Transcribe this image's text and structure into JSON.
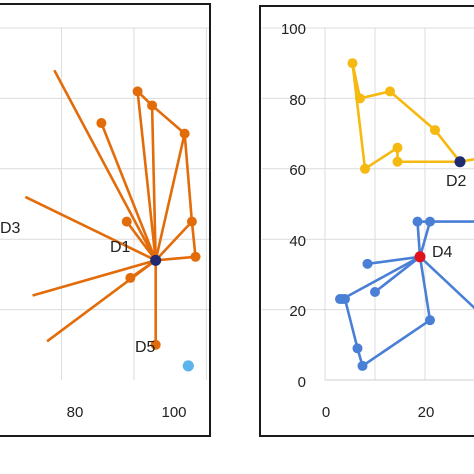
{
  "chart_data": [
    {
      "type": "scatter",
      "title": "",
      "xlabel": "",
      "ylabel": "",
      "xlim": [
        40,
        100
      ],
      "ylim": [
        0,
        100
      ],
      "x_ticks": [
        80,
        100
      ],
      "grid": true,
      "legend": "none",
      "series": [
        {
          "color": "#e36c0a",
          "style": "spokes-to-center",
          "center": {
            "x": 86,
            "y": 34
          },
          "points": [
            {
              "x": 71,
              "y": 73
            },
            {
              "x": 81,
              "y": 82
            },
            {
              "x": 85,
              "y": 78
            },
            {
              "x": 94,
              "y": 70
            },
            {
              "x": 96,
              "y": 45
            },
            {
              "x": 97,
              "y": 35
            },
            {
              "x": 78,
              "y": 45
            },
            {
              "x": 79,
              "y": 29
            },
            {
              "x": 86,
              "y": 10
            }
          ],
          "edges": [
            [
              1,
              2
            ],
            [
              2,
              3
            ],
            [
              3,
              4
            ],
            [
              4,
              5
            ]
          ]
        },
        {
          "color": "#e36c0a",
          "style": "offscreen-spokes",
          "points": [
            {
              "x": 58,
              "y": 88
            },
            {
              "x": 50,
              "y": 52
            },
            {
              "x": 52,
              "y": 24
            },
            {
              "x": 56,
              "y": 11
            }
          ]
        },
        {
          "color": "#5bb5ea",
          "style": "point",
          "points": [
            {
              "x": 95,
              "y": 4
            }
          ]
        }
      ],
      "annotations": [
        {
          "text": "D1",
          "x": 86,
          "y": 34
        },
        {
          "text": "D3",
          "x": 41,
          "y": 43
        },
        {
          "text": "D5",
          "x": 95,
          "y": 4
        }
      ],
      "markers": [
        {
          "x": 86,
          "y": 34,
          "color": "#1f2a70"
        },
        {
          "x": 95,
          "y": 4,
          "color": "#5bb5ea"
        }
      ]
    },
    {
      "type": "scatter",
      "title": "",
      "xlabel": "",
      "ylabel": "",
      "xlim": [
        0,
        30
      ],
      "ylim": [
        0,
        100
      ],
      "x_ticks": [
        0,
        20
      ],
      "y_ticks": [
        0,
        20,
        40,
        60,
        80,
        100
      ],
      "grid": true,
      "legend": "none",
      "series": [
        {
          "color": "#f5b90f",
          "style": "polygon",
          "points": [
            {
              "x": 5.5,
              "y": 90
            },
            {
              "x": 7,
              "y": 80
            },
            {
              "x": 13,
              "y": 82
            },
            {
              "x": 22,
              "y": 71
            },
            {
              "x": 27,
              "y": 62
            },
            {
              "x": 14.5,
              "y": 62
            },
            {
              "x": 14.5,
              "y": 66
            },
            {
              "x": 8,
              "y": 60
            }
          ],
          "closed": true
        },
        {
          "color": "#f5b90f",
          "style": "offscreen-line",
          "points": [
            {
              "x": 27,
              "y": 62
            },
            {
              "x": 31,
              "y": 63
            }
          ]
        },
        {
          "color": "#4a7fd6",
          "style": "spokes-to-center",
          "center": {
            "x": 19,
            "y": 35
          },
          "points": [
            {
              "x": 18.5,
              "y": 45
            },
            {
              "x": 21,
              "y": 45
            },
            {
              "x": 8.5,
              "y": 33
            },
            {
              "x": 10,
              "y": 25
            },
            {
              "x": 3.5,
              "y": 23
            }
          ],
          "edges": [
            [
              0,
              1
            ]
          ]
        },
        {
          "color": "#4a7fd6",
          "style": "polyline",
          "points": [
            {
              "x": 19,
              "y": 35
            },
            {
              "x": 21,
              "y": 17
            },
            {
              "x": 7.5,
              "y": 4
            },
            {
              "x": 6.5,
              "y": 9
            },
            {
              "x": 4,
              "y": 23
            },
            {
              "x": 3,
              "y": 23
            }
          ]
        },
        {
          "color": "#4a7fd6",
          "style": "offscreen-line",
          "points": [
            {
              "x": 21,
              "y": 45
            },
            {
              "x": 31,
              "y": 45
            }
          ]
        },
        {
          "color": "#4a7fd6",
          "style": "offscreen-line",
          "points": [
            {
              "x": 19,
              "y": 35
            },
            {
              "x": 31,
              "y": 19
            }
          ]
        }
      ],
      "annotations": [
        {
          "text": "D2",
          "x": 27,
          "y": 62
        },
        {
          "text": "D4",
          "x": 19,
          "y": 35
        }
      ],
      "markers": [
        {
          "x": 27,
          "y": 62,
          "color": "#1f2a70"
        },
        {
          "x": 19,
          "y": 35,
          "color": "#e0121c"
        }
      ]
    }
  ]
}
